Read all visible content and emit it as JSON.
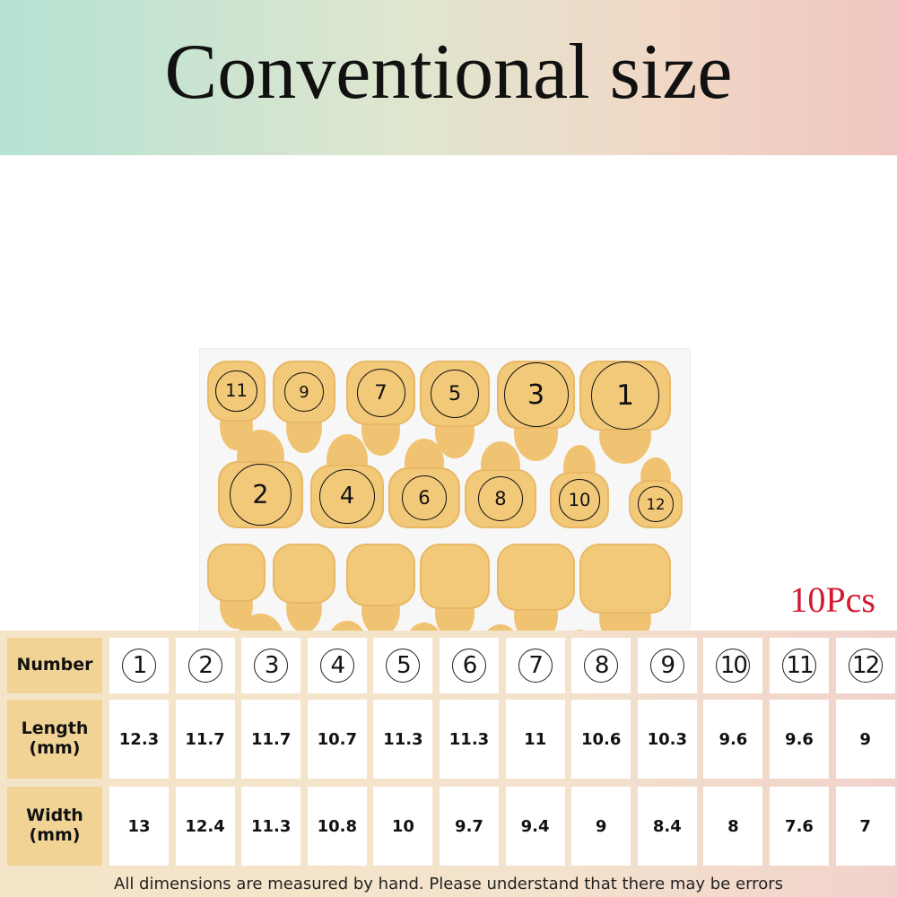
{
  "title": "Conventional size",
  "quantity_label": "10Pcs",
  "sheet_row1_numbers": [
    "11",
    "9",
    "7",
    "5",
    "3",
    "1"
  ],
  "sheet_row2_numbers": [
    "2",
    "4",
    "6",
    "8",
    "10",
    "12"
  ],
  "table": {
    "row_labels": {
      "number": "Number",
      "length": "Length\n(mm)",
      "width": "Width\n(mm)"
    },
    "numbers": [
      "1",
      "2",
      "3",
      "4",
      "5",
      "6",
      "7",
      "8",
      "9",
      "10",
      "11",
      "12"
    ],
    "lengths": [
      "12.3",
      "11.7",
      "11.7",
      "10.7",
      "11.3",
      "11.3",
      "11",
      "10.6",
      "10.3",
      "9.6",
      "9.6",
      "9"
    ],
    "widths": [
      "13",
      "12.4",
      "11.3",
      "10.8",
      "10",
      "9.7",
      "9.4",
      "9",
      "8.4",
      "8",
      "7.6",
      "7"
    ]
  },
  "footnote": "All dimensions are measured by hand. Please understand that there may be errors",
  "colors": {
    "sticker": "#f2c879",
    "label_cell": "#f0d395",
    "quantity": "#d5172f"
  }
}
